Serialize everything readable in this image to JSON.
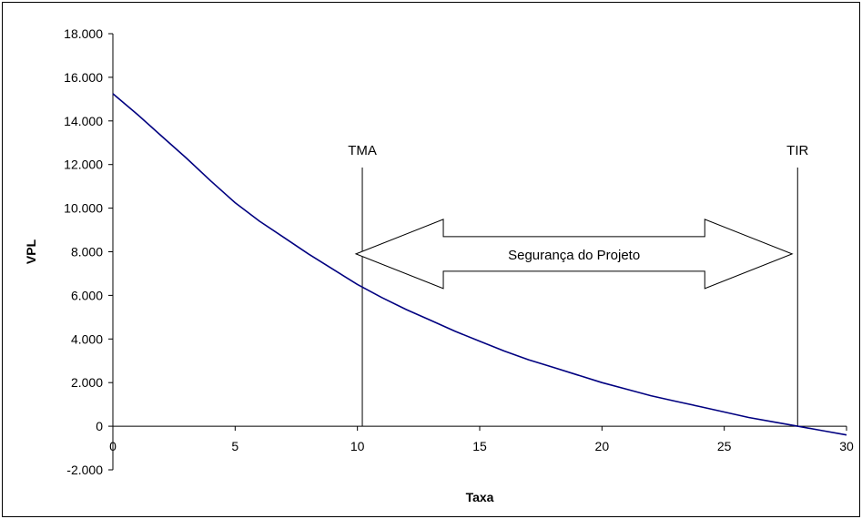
{
  "chart_data": {
    "type": "line",
    "xlabel": "Taxa",
    "ylabel": "VPL",
    "xlim": [
      0,
      30
    ],
    "ylim": [
      -2000,
      18000
    ],
    "x_ticks": [
      0,
      5,
      10,
      15,
      20,
      25,
      30
    ],
    "x_tick_labels": [
      "0",
      "5",
      "10",
      "15",
      "20",
      "25",
      "30"
    ],
    "y_ticks": [
      -2000,
      0,
      2000,
      4000,
      6000,
      8000,
      10000,
      12000,
      14000,
      16000,
      18000
    ],
    "y_tick_labels": [
      "-2.000",
      "0",
      "2.000",
      "4.000",
      "6.000",
      "8.000",
      "10.000",
      "12.000",
      "14.000",
      "16.000",
      "18.000"
    ],
    "grid": false,
    "series": [
      {
        "color": "#000080",
        "x": [
          0,
          1,
          2,
          3,
          4,
          5,
          6,
          7,
          8,
          9,
          10,
          11,
          12,
          13,
          14,
          15,
          16,
          17,
          18,
          19,
          20,
          21,
          22,
          23,
          24,
          25,
          26,
          27,
          28,
          29,
          30
        ],
        "y": [
          15250,
          14300,
          13300,
          12300,
          11250,
          10250,
          9400,
          8650,
          7900,
          7200,
          6500,
          5900,
          5350,
          4850,
          4350,
          3900,
          3450,
          3050,
          2700,
          2350,
          2000,
          1700,
          1400,
          1150,
          900,
          650,
          400,
          200,
          0,
          -200,
          -400
        ]
      }
    ],
    "annotations": {
      "tma": {
        "label": "TMA",
        "x": 10.2
      },
      "tir": {
        "label": "TIR",
        "x": 28
      },
      "arrow": {
        "label": "Segurança do Projeto",
        "x_from": 10.2,
        "x_to": 28,
        "y": 7900
      }
    }
  }
}
